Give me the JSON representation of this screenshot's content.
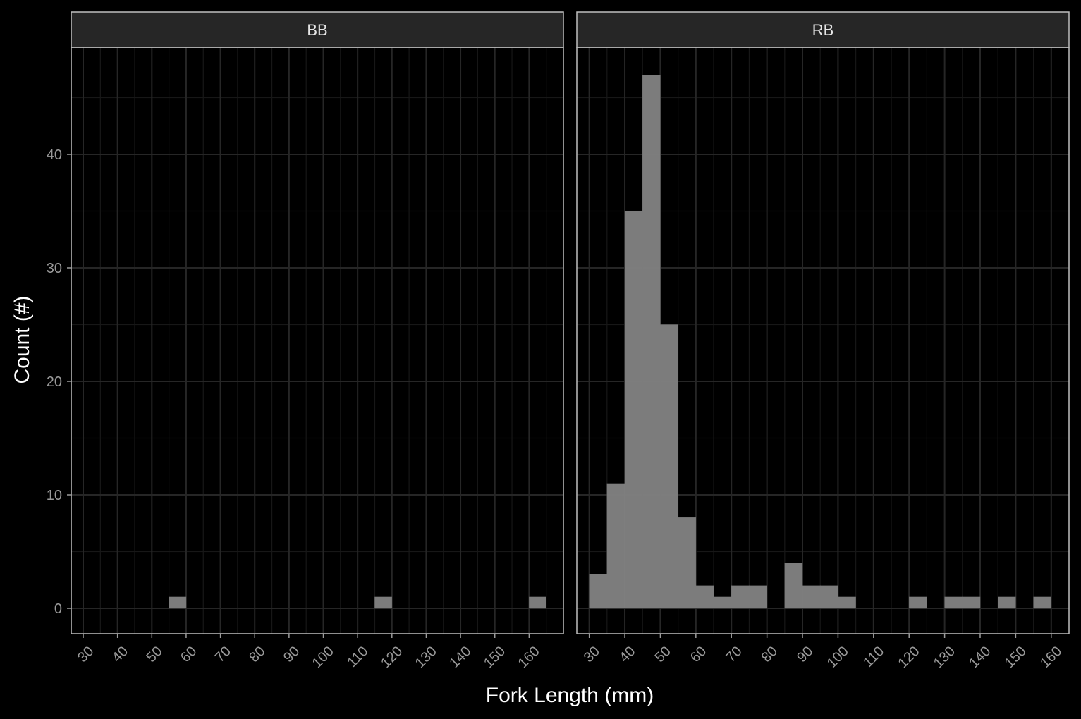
{
  "chart_data": {
    "type": "bar",
    "subtype": "faceted-histogram",
    "xlabel": "Fork Length (mm)",
    "ylabel": "Count (#)",
    "bin_width": 5,
    "x_ticks": [
      30,
      40,
      50,
      60,
      70,
      80,
      90,
      100,
      110,
      120,
      130,
      140,
      150,
      160
    ],
    "y_ticks": [
      0,
      10,
      20,
      30,
      40
    ],
    "ylim": [
      -2.2,
      49.5
    ],
    "grid": true,
    "colors": {
      "background": "#000000",
      "panel_background": "#000000",
      "panel_border": "#bfbfbf",
      "grid_major": "#262626",
      "grid_minor": "#171717",
      "strip_background": "#262626",
      "bar_fill": "#808080"
    },
    "facets": [
      {
        "strip": "BB",
        "xlim": [
          26.5,
          170
        ],
        "bins": [
          {
            "x0": 55,
            "x1": 60,
            "count": 1
          },
          {
            "x0": 115,
            "x1": 120,
            "count": 1
          },
          {
            "x0": 160,
            "x1": 165,
            "count": 1
          }
        ]
      },
      {
        "strip": "RB",
        "xlim": [
          26.5,
          165
        ],
        "bins": [
          {
            "x0": 30,
            "x1": 35,
            "count": 3
          },
          {
            "x0": 35,
            "x1": 40,
            "count": 11
          },
          {
            "x0": 40,
            "x1": 45,
            "count": 35
          },
          {
            "x0": 45,
            "x1": 50,
            "count": 47
          },
          {
            "x0": 50,
            "x1": 55,
            "count": 25
          },
          {
            "x0": 55,
            "x1": 60,
            "count": 8
          },
          {
            "x0": 60,
            "x1": 65,
            "count": 2
          },
          {
            "x0": 65,
            "x1": 70,
            "count": 1
          },
          {
            "x0": 70,
            "x1": 75,
            "count": 2
          },
          {
            "x0": 75,
            "x1": 80,
            "count": 2
          },
          {
            "x0": 85,
            "x1": 90,
            "count": 4
          },
          {
            "x0": 90,
            "x1": 95,
            "count": 2
          },
          {
            "x0": 95,
            "x1": 100,
            "count": 2
          },
          {
            "x0": 100,
            "x1": 105,
            "count": 1
          },
          {
            "x0": 120,
            "x1": 125,
            "count": 1
          },
          {
            "x0": 130,
            "x1": 135,
            "count": 1
          },
          {
            "x0": 135,
            "x1": 140,
            "count": 1
          },
          {
            "x0": 145,
            "x1": 150,
            "count": 1
          },
          {
            "x0": 155,
            "x1": 160,
            "count": 1
          }
        ]
      }
    ]
  }
}
